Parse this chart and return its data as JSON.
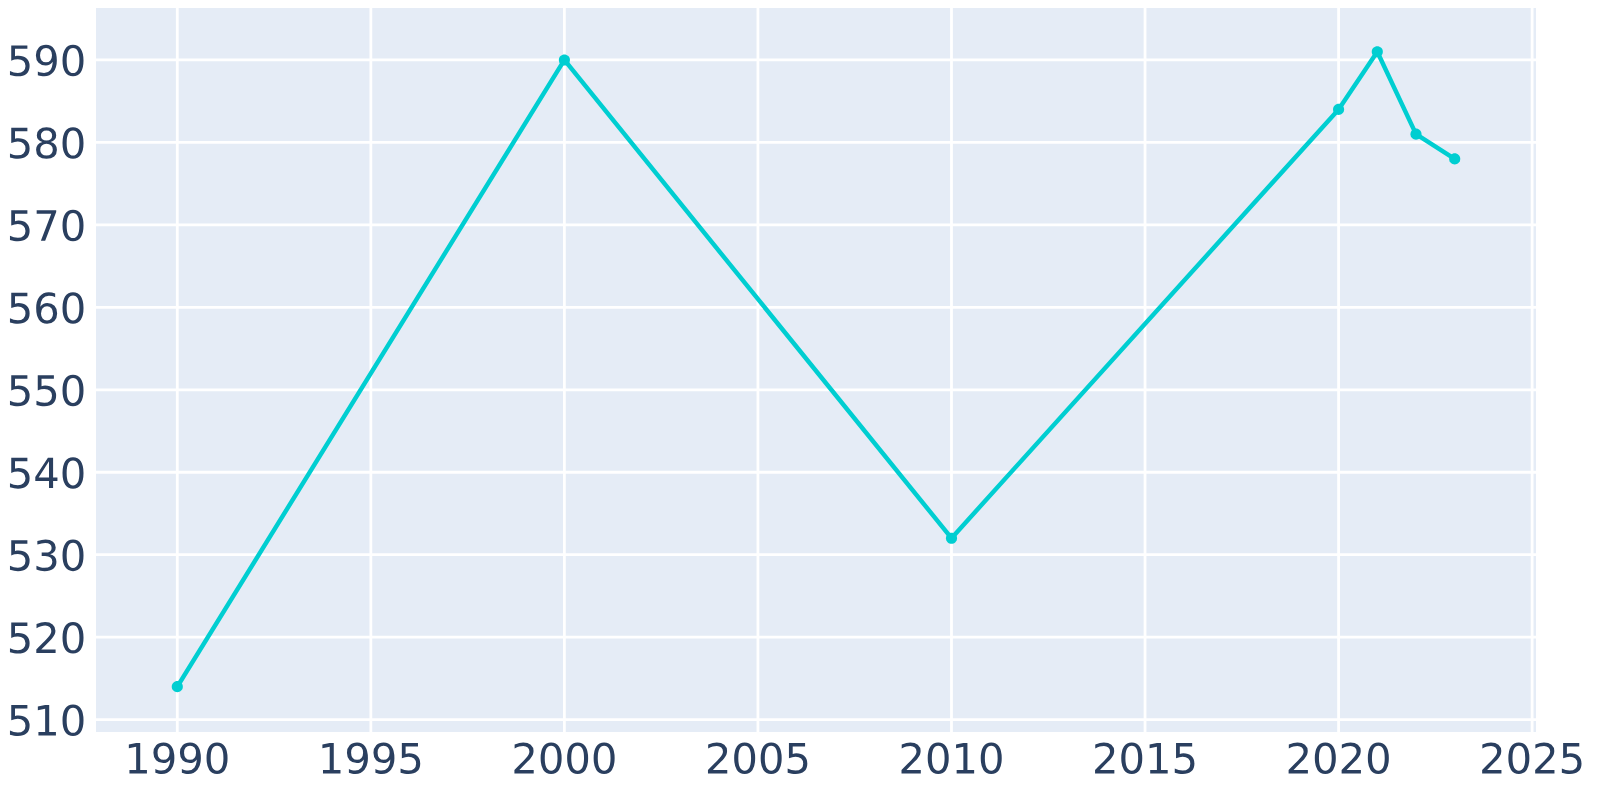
{
  "chart_data": {
    "type": "line",
    "x": [
      1990,
      2000,
      2010,
      2020,
      2021,
      2022,
      2023
    ],
    "series": [
      {
        "color": "#00ced1",
        "values": [
          514,
          590,
          532,
          584,
          591,
          581,
          578
        ]
      }
    ],
    "xlim": [
      1987.9,
      2025.1
    ],
    "xticks": [
      1990,
      1995,
      2000,
      2005,
      2010,
      2015,
      2020,
      2025
    ],
    "ylim": [
      508.5,
      596.3
    ],
    "yticks": [
      510,
      520,
      530,
      540,
      550,
      560,
      570,
      580,
      590
    ],
    "grid": true,
    "marker": "circle",
    "line_style": "solid"
  }
}
